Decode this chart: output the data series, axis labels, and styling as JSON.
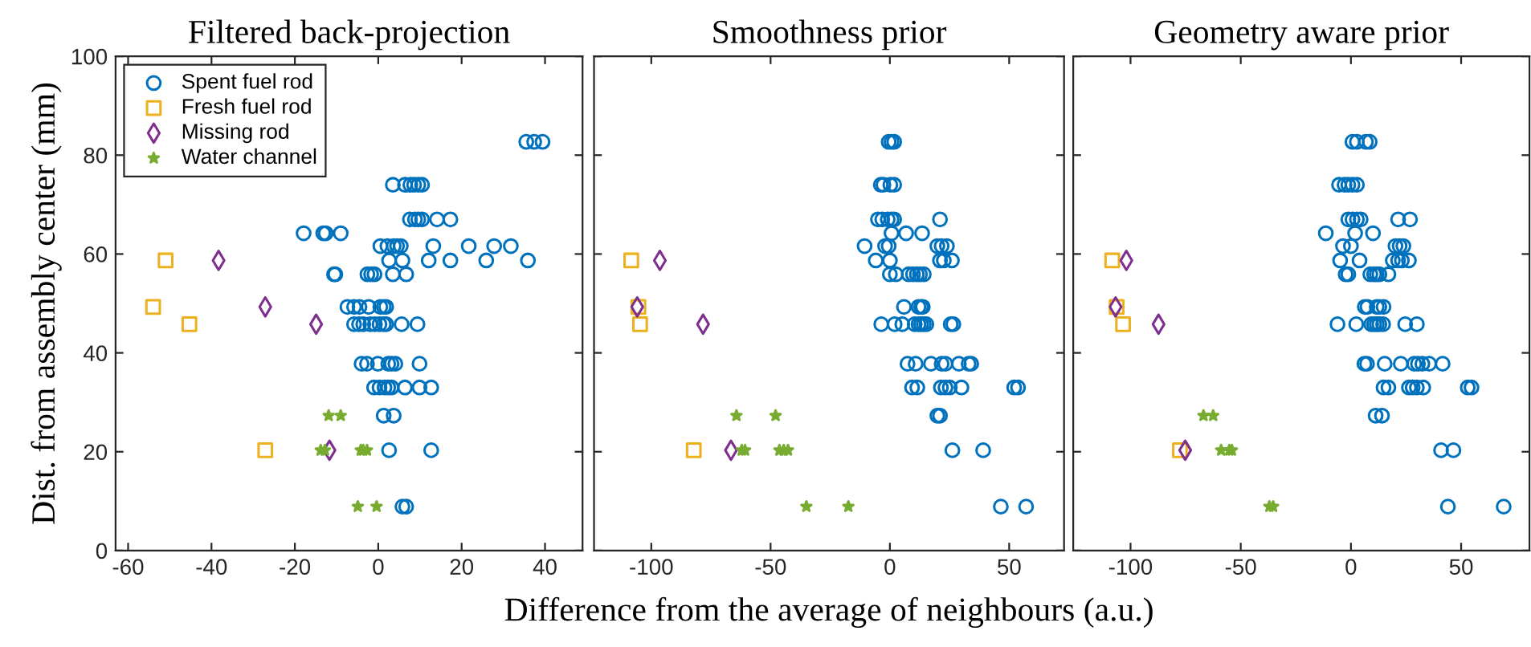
{
  "chart_data": [
    {
      "type": "scatter",
      "title": "Filtered back-projection",
      "ylabel": "Dist. from assembly center (mm)",
      "xlim": [
        -63,
        49
      ],
      "xticks": [
        -60,
        -40,
        -20,
        0,
        20,
        40
      ],
      "ylim": [
        0,
        100
      ],
      "yticks": [
        0,
        20,
        40,
        60,
        80,
        100
      ],
      "grid": false,
      "legend": "top left",
      "series": [
        {
          "name": "Spent fuel rod",
          "color": "#0072bd",
          "marker": "circle",
          "x": [
            35.5,
            37.4,
            39.4,
            3.5,
            6.4,
            7.7,
            8.6,
            9.6,
            10.5,
            7.6,
            8.8,
            9.6,
            10.5,
            14.1,
            17.3,
            -17.9,
            -13.2,
            -12.6,
            -9.0,
            0.5,
            2.2,
            3.7,
            4.5,
            5.4,
            13.2,
            21.7,
            27.8,
            31.8,
            2.6,
            5.8,
            12.1,
            17.3,
            25.9,
            35.9,
            -10.6,
            -10.3,
            -2.6,
            -1.7,
            -0.9,
            3.5,
            6.7,
            -7.4,
            -5.8,
            -4.5,
            -2.3,
            0.5,
            1.3,
            1.9,
            -5.8,
            -4.6,
            -3.6,
            -1.9,
            -0.8,
            0.3,
            1.3,
            1.9,
            5.6,
            9.4,
            -4.0,
            -2.7,
            -0.1,
            2.4,
            3.2,
            4.1,
            9.9,
            -1.0,
            0.3,
            1.5,
            2.4,
            3.2,
            6.4,
            9.9,
            12.7,
            1.3,
            3.7,
            2.6,
            12.7,
            5.8,
            6.7
          ],
          "values": [
            82.7,
            82.7,
            82.7,
            74,
            74,
            74,
            74,
            74,
            74,
            67,
            67,
            67,
            67,
            67,
            67,
            64.2,
            64.2,
            64.2,
            64.2,
            61.6,
            61.6,
            61.6,
            61.6,
            61.6,
            61.6,
            61.6,
            61.6,
            61.6,
            58.7,
            58.7,
            58.7,
            58.7,
            58.7,
            58.7,
            55.9,
            55.9,
            55.9,
            55.9,
            55.9,
            55.9,
            55.9,
            49.3,
            49.3,
            49.3,
            49.3,
            49.3,
            49.3,
            49.3,
            45.8,
            45.8,
            45.8,
            45.8,
            45.8,
            45.8,
            45.8,
            45.8,
            45.8,
            45.8,
            37.8,
            37.8,
            37.8,
            37.8,
            37.8,
            37.8,
            37.8,
            33,
            33,
            33,
            33,
            33,
            33,
            33,
            33,
            27.3,
            27.3,
            20.3,
            20.3,
            8.9,
            8.9
          ]
        },
        {
          "name": "Fresh fuel rod",
          "color": "#edb120",
          "marker": "square",
          "x": [
            -51.0,
            -54.0,
            -45.3,
            -27.1
          ],
          "values": [
            58.7,
            49.3,
            45.8,
            20.3
          ]
        },
        {
          "name": "Missing rod",
          "color": "#7e2f8e",
          "marker": "diamond",
          "x": [
            -38.3,
            -27.1,
            -14.9,
            -11.7
          ],
          "values": [
            58.7,
            49.3,
            45.8,
            20.3
          ]
        },
        {
          "name": "Water channel",
          "color": "#77ac30",
          "marker": "star",
          "x": [
            -11.9,
            -9.0,
            -13.8,
            -12.8,
            -4.2,
            -3.6,
            -2.7,
            -4.9,
            -0.4
          ],
          "values": [
            27.3,
            27.3,
            20.3,
            20.3,
            20.3,
            20.3,
            20.3,
            8.9,
            8.9
          ]
        }
      ]
    },
    {
      "type": "scatter",
      "title": "Smoothness prior",
      "xlabel": "Difference from the average of neighbours (a.u.)",
      "xlim": [
        -124,
        73
      ],
      "xticks": [
        -100,
        -50,
        0,
        50
      ],
      "ylim": [
        0,
        100
      ],
      "yticks": [
        {
          "value": 0,
          "label": null
        },
        {
          "value": 20,
          "label": null
        },
        {
          "value": 40,
          "label": null
        },
        {
          "value": 60,
          "label": null
        },
        {
          "value": 80,
          "label": null
        },
        {
          "value": 100,
          "label": null
        }
      ],
      "tick_labels": "x",
      "grid": false,
      "series": [
        {
          "color": "#0072bd",
          "marker": "circle",
          "x": [
            -0.5,
            0.7,
            1.8,
            -3.8,
            -2.7,
            0.2,
            1.8,
            -5.0,
            -3.2,
            -0.9,
            0.7,
            1.8,
            21.0,
            0.7,
            6.8,
            13.5,
            -10.6,
            -2.0,
            -0.5,
            19.9,
            21.7,
            23.9,
            -5.9,
            0,
            21.0,
            22.6,
            26.0,
            0,
            2.5,
            7.9,
            9.7,
            11.3,
            12.6,
            14.2,
            5.9,
            12.0,
            13.1,
            13.8,
            -3.6,
            2.0,
            5.2,
            10.4,
            12.0,
            13.1,
            14.2,
            15.3,
            25.5,
            26.6,
            7.4,
            10.8,
            17.2,
            21.7,
            23.3,
            28.9,
            33.0,
            34.1,
            9.3,
            11.5,
            21.4,
            23.3,
            25.1,
            30.0,
            52.1,
            53.7,
            19.9,
            21.0,
            26.2,
            39.1,
            46.5,
            57.1
          ],
          "values": [
            82.7,
            82.7,
            82.7,
            74,
            74,
            74,
            74,
            67,
            67,
            67,
            67,
            67,
            67,
            64.2,
            64.2,
            64.2,
            61.6,
            61.6,
            61.6,
            61.6,
            61.6,
            61.6,
            58.7,
            58.7,
            58.7,
            58.7,
            58.7,
            55.9,
            55.9,
            55.9,
            55.9,
            55.9,
            55.9,
            55.9,
            49.3,
            49.3,
            49.3,
            49.3,
            45.8,
            45.8,
            45.8,
            45.8,
            45.8,
            45.8,
            45.8,
            45.8,
            45.8,
            45.8,
            37.8,
            37.8,
            37.8,
            37.8,
            37.8,
            37.8,
            37.8,
            37.8,
            33,
            33,
            33,
            33,
            33,
            33,
            33,
            33,
            27.3,
            27.3,
            20.3,
            20.3,
            8.9,
            8.9
          ]
        },
        {
          "color": "#edb120",
          "marker": "square",
          "x": [
            -108.4,
            -105.4,
            -104.7,
            -82.2
          ],
          "values": [
            58.7,
            49.3,
            45.8,
            20.3
          ]
        },
        {
          "color": "#7e2f8e",
          "marker": "diamond",
          "x": [
            -96.4,
            -105.9,
            -78.3,
            -66.6
          ],
          "values": [
            58.7,
            49.3,
            45.8,
            20.3
          ]
        },
        {
          "color": "#77ac30",
          "marker": "star",
          "x": [
            -64.3,
            -47.9,
            -62.1,
            -60.7,
            -46.3,
            -44.5,
            -42.7,
            -35.0,
            -17.4
          ],
          "values": [
            27.3,
            27.3,
            20.3,
            20.3,
            20.3,
            20.3,
            20.3,
            8.9,
            8.9
          ]
        }
      ]
    },
    {
      "type": "scatter",
      "title": "Geometry aware prior",
      "xlim": [
        -126,
        81
      ],
      "xticks": [
        -100,
        -50,
        0,
        50
      ],
      "ylim": [
        0,
        100
      ],
      "yticks": [
        {
          "value": 0,
          "label": null
        },
        {
          "value": 20,
          "label": null
        },
        {
          "value": 40,
          "label": null
        },
        {
          "value": 60,
          "label": null
        },
        {
          "value": 80,
          "label": null
        },
        {
          "value": 100,
          "label": null
        }
      ],
      "tick_labels": "x",
      "grid": false,
      "series": [
        {
          "color": "#0072bd",
          "marker": "circle",
          "x": [
            0.7,
            2.7,
            6.8,
            8.5,
            -5.4,
            -2.9,
            -1.2,
            0.7,
            2.7,
            -1.2,
            0.7,
            2.7,
            4.4,
            21.4,
            26.8,
            -11.4,
            1.9,
            10.0,
            -3.6,
            0,
            20.2,
            22.1,
            23.8,
            -4.9,
            3.9,
            19.0,
            21.4,
            23.1,
            26.3,
            -2.4,
            -1.2,
            8.8,
            10.5,
            11.7,
            12.9,
            17.0,
            6.3,
            7.5,
            11.7,
            12.9,
            14.8,
            -6.1,
            2.4,
            9.2,
            10.5,
            11.7,
            12.9,
            14.6,
            24.6,
            29.9,
            6.1,
            7.3,
            15.3,
            22.6,
            28.7,
            30.4,
            32.4,
            35.5,
            41.6,
            14.8,
            17.0,
            26.3,
            28.0,
            29.9,
            32.8,
            53.0,
            54.7,
            11.2,
            14.1,
            40.9,
            46.5,
            44.0,
            69.3
          ],
          "values": [
            82.7,
            82.7,
            82.7,
            82.7,
            74,
            74,
            74,
            74,
            74,
            67,
            67,
            67,
            67,
            67,
            67,
            64.2,
            64.2,
            64.2,
            61.6,
            61.6,
            61.6,
            61.6,
            61.6,
            58.7,
            58.7,
            58.7,
            58.7,
            58.7,
            58.7,
            55.9,
            55.9,
            55.9,
            55.9,
            55.9,
            55.9,
            55.9,
            49.3,
            49.3,
            49.3,
            49.3,
            49.3,
            45.8,
            45.8,
            45.8,
            45.8,
            45.8,
            45.8,
            45.8,
            45.8,
            45.8,
            37.8,
            37.8,
            37.8,
            37.8,
            37.8,
            37.8,
            37.8,
            37.8,
            37.8,
            33,
            33,
            33,
            33,
            33,
            33,
            33,
            33,
            27.3,
            27.3,
            20.3,
            20.3,
            8.9,
            8.9
          ]
        },
        {
          "color": "#edb120",
          "marker": "square",
          "x": [
            -108.3,
            -106.3,
            -103.4,
            -77.6
          ],
          "values": [
            58.7,
            49.3,
            45.8,
            20.3
          ]
        },
        {
          "color": "#7e2f8e",
          "marker": "diamond",
          "x": [
            -101.9,
            -106.8,
            -87.3,
            -75.2
          ],
          "values": [
            58.7,
            49.3,
            45.8,
            20.3
          ]
        },
        {
          "color": "#77ac30",
          "marker": "star",
          "x": [
            -66.9,
            -62.5,
            -58.9,
            -55.2,
            -54.0,
            -37.0,
            -35.3
          ],
          "values": [
            27.3,
            27.3,
            20.3,
            20.3,
            20.3,
            8.9,
            8.9
          ]
        }
      ]
    }
  ]
}
